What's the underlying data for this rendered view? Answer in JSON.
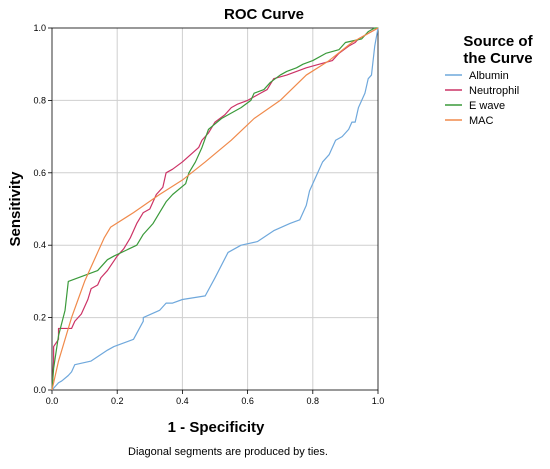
{
  "chart_data": {
    "type": "line",
    "title": "ROC Curve",
    "xlabel": "1 - Specificity",
    "ylabel": "Sensitivity",
    "xlim": [
      0,
      1
    ],
    "ylim": [
      0,
      1
    ],
    "xticks": [
      "0.0",
      "0.2",
      "0.4",
      "0.6",
      "0.8",
      "1.0"
    ],
    "yticks": [
      "0.0",
      "0.2",
      "0.4",
      "0.6",
      "0.8",
      "1.0"
    ],
    "grid": true,
    "legend": {
      "title_line1": "Source of",
      "title_line2": "the Curve",
      "placement": "right"
    },
    "footnote": "Diagonal segments are produced by ties.",
    "series": [
      {
        "name": "Albumin",
        "color": "#6fa8dc",
        "x": [
          0,
          0.01,
          0.02,
          0.03,
          0.05,
          0.06,
          0.07,
          0.12,
          0.17,
          0.19,
          0.25,
          0.28,
          0.28,
          0.33,
          0.35,
          0.37,
          0.4,
          0.47,
          0.5,
          0.54,
          0.58,
          0.63,
          0.68,
          0.73,
          0.76,
          0.78,
          0.79,
          0.81,
          0.83,
          0.85,
          0.87,
          0.89,
          0.91,
          0.92,
          0.93,
          0.94,
          0.95,
          0.96,
          0.97,
          0.98,
          0.99,
          1.0
        ],
        "y": [
          0,
          0.01,
          0.02,
          0.025,
          0.04,
          0.05,
          0.07,
          0.08,
          0.11,
          0.12,
          0.14,
          0.19,
          0.2,
          0.22,
          0.24,
          0.24,
          0.25,
          0.26,
          0.31,
          0.38,
          0.4,
          0.41,
          0.44,
          0.46,
          0.47,
          0.51,
          0.55,
          0.59,
          0.63,
          0.65,
          0.69,
          0.7,
          0.72,
          0.74,
          0.74,
          0.78,
          0.8,
          0.82,
          0.86,
          0.87,
          0.95,
          1.0
        ]
      },
      {
        "name": "Neutrophil",
        "color": "#cc3366",
        "x": [
          0,
          0.005,
          0.005,
          0.02,
          0.02,
          0.06,
          0.07,
          0.09,
          0.1,
          0.11,
          0.12,
          0.14,
          0.15,
          0.17,
          0.2,
          0.22,
          0.24,
          0.25,
          0.26,
          0.28,
          0.3,
          0.31,
          0.32,
          0.33,
          0.34,
          0.35,
          0.37,
          0.4,
          0.45,
          0.46,
          0.48,
          0.5,
          0.53,
          0.55,
          0.57,
          0.6,
          0.62,
          0.64,
          0.66,
          0.68,
          0.72,
          0.75,
          0.78,
          0.82,
          0.86,
          0.88,
          0.91,
          0.93,
          0.94,
          0.96,
          0.98,
          1.0
        ],
        "y": [
          0,
          0.08,
          0.12,
          0.14,
          0.17,
          0.17,
          0.19,
          0.21,
          0.23,
          0.25,
          0.28,
          0.29,
          0.31,
          0.33,
          0.37,
          0.39,
          0.42,
          0.44,
          0.46,
          0.49,
          0.5,
          0.52,
          0.54,
          0.55,
          0.56,
          0.6,
          0.61,
          0.63,
          0.67,
          0.69,
          0.71,
          0.74,
          0.76,
          0.78,
          0.79,
          0.8,
          0.81,
          0.82,
          0.83,
          0.86,
          0.87,
          0.88,
          0.89,
          0.9,
          0.91,
          0.93,
          0.95,
          0.96,
          0.97,
          0.98,
          0.99,
          1.0
        ]
      },
      {
        "name": "E wave",
        "color": "#3a9a3a",
        "x": [
          0,
          0.005,
          0.02,
          0.04,
          0.05,
          0.08,
          0.14,
          0.16,
          0.17,
          0.19,
          0.26,
          0.28,
          0.29,
          0.31,
          0.33,
          0.35,
          0.37,
          0.41,
          0.42,
          0.44,
          0.46,
          0.48,
          0.52,
          0.56,
          0.58,
          0.61,
          0.62,
          0.65,
          0.67,
          0.7,
          0.72,
          0.75,
          0.77,
          0.8,
          0.84,
          0.88,
          0.9,
          0.95,
          0.97,
          0.99,
          1.0
        ],
        "y": [
          0,
          0.06,
          0.15,
          0.22,
          0.3,
          0.31,
          0.33,
          0.35,
          0.36,
          0.37,
          0.4,
          0.43,
          0.44,
          0.46,
          0.49,
          0.52,
          0.54,
          0.57,
          0.6,
          0.63,
          0.67,
          0.72,
          0.75,
          0.77,
          0.78,
          0.8,
          0.82,
          0.83,
          0.85,
          0.87,
          0.88,
          0.89,
          0.9,
          0.91,
          0.93,
          0.94,
          0.96,
          0.97,
          0.99,
          1.0,
          1.0
        ]
      },
      {
        "name": "MAC",
        "color": "#f08a4b",
        "x": [
          0,
          0.02,
          0.04,
          0.06,
          0.08,
          0.1,
          0.12,
          0.14,
          0.16,
          0.18,
          0.25,
          0.33,
          0.4,
          0.47,
          0.55,
          0.62,
          0.7,
          0.78,
          0.85,
          0.92,
          1.0
        ],
        "y": [
          0,
          0.08,
          0.14,
          0.2,
          0.25,
          0.3,
          0.34,
          0.38,
          0.42,
          0.45,
          0.49,
          0.54,
          0.58,
          0.63,
          0.69,
          0.75,
          0.8,
          0.87,
          0.91,
          0.96,
          1.0
        ]
      }
    ]
  }
}
